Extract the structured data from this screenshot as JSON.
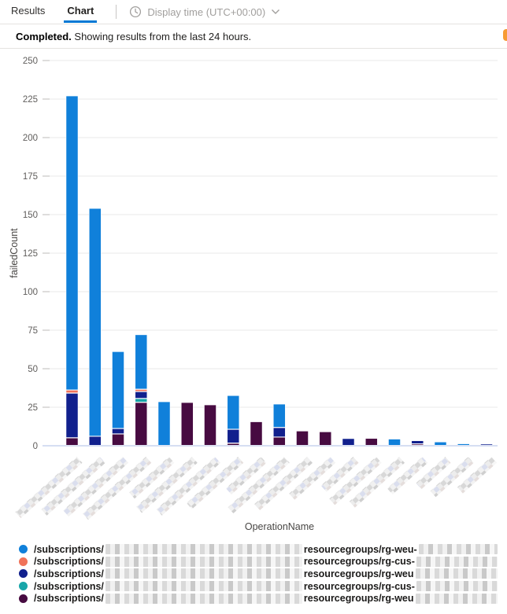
{
  "tabs": {
    "results": "Results",
    "chart": "Chart"
  },
  "toolbar": {
    "display_time_label": "Display time (UTC+00:00)"
  },
  "status": {
    "completed": "Completed.",
    "message": " Showing results from the last 24 hours."
  },
  "chart_data": {
    "type": "bar",
    "stacked": true,
    "title": "",
    "xlabel": "OperationName",
    "ylabel": "failedCount",
    "ylim": [
      0,
      250
    ],
    "ytick_step": 25,
    "grid": true,
    "legend_position": "bottom",
    "x_tick_labels": "redacted (pixelated operation names, one per bar)",
    "bar_count": 19,
    "series": [
      {
        "name": "/subscriptions/[redacted]/resourcegroups/rg-weu-[redacted]",
        "color": "#1080da",
        "values": [
          191,
          148,
          50,
          35.5,
          28.5,
          0,
          0,
          22,
          0,
          15.3,
          0,
          0,
          0,
          0,
          4.3,
          0,
          2.4,
          1.2,
          0
        ]
      },
      {
        "name": "/subscriptions/[redacted]/resourcegroups/rg-cus-[redacted]",
        "color": "#f0735a",
        "values": [
          2,
          0,
          0,
          1.5,
          0,
          0,
          0,
          0,
          0,
          0,
          0,
          0,
          0,
          0,
          0,
          0,
          0,
          0,
          0
        ]
      },
      {
        "name": "/subscriptions/[redacted]/resourcegroups/rg-weu[redacted]",
        "color": "#11208d",
        "values": [
          29,
          6,
          3.5,
          4.5,
          0,
          0,
          0,
          9,
          0,
          6.2,
          0,
          0,
          4.6,
          0,
          0,
          2.2,
          0,
          0,
          1
        ]
      },
      {
        "name": "/subscriptions/[redacted]/resourcegroups/rg-cus-[redacted]",
        "color": "#18a6a9",
        "values": [
          0,
          0,
          0,
          2.5,
          0,
          0,
          0,
          0,
          0,
          0,
          0,
          0,
          0,
          0,
          0,
          0,
          0,
          0,
          0
        ]
      },
      {
        "name": "/subscriptions/[redacted]/resourcegroups/rg-weu[redacted]",
        "color": "#470b41",
        "values": [
          5,
          0,
          7.5,
          28,
          0,
          28,
          26.5,
          1.5,
          15.5,
          5.5,
          9.5,
          9,
          0,
          4.7,
          0,
          1,
          0,
          0,
          0
        ]
      }
    ],
    "totals": [
      227,
      154,
      61,
      72,
      28.5,
      28,
      26.5,
      32.5,
      15.5,
      27,
      9.5,
      9,
      4.6,
      4.7,
      4.3,
      3.2,
      2.4,
      1.2,
      1
    ]
  },
  "legend": {
    "items": [
      {
        "color": "#1080da",
        "prefix": "/subscriptions/",
        "middle": "resourcegroups/rg-weu-"
      },
      {
        "color": "#f0735a",
        "prefix": "/subscriptions/",
        "middle": "resourcegroups/rg-cus-"
      },
      {
        "color": "#11208d",
        "prefix": "/subscriptions/",
        "middle": "resourcegroups/rg-weu"
      },
      {
        "color": "#18a6a9",
        "prefix": "/subscriptions/",
        "middle": "resourcegroups/rg-cus-"
      },
      {
        "color": "#470b41",
        "prefix": "/subscriptions/",
        "middle": "resourcegroups/rg-weu"
      }
    ]
  }
}
